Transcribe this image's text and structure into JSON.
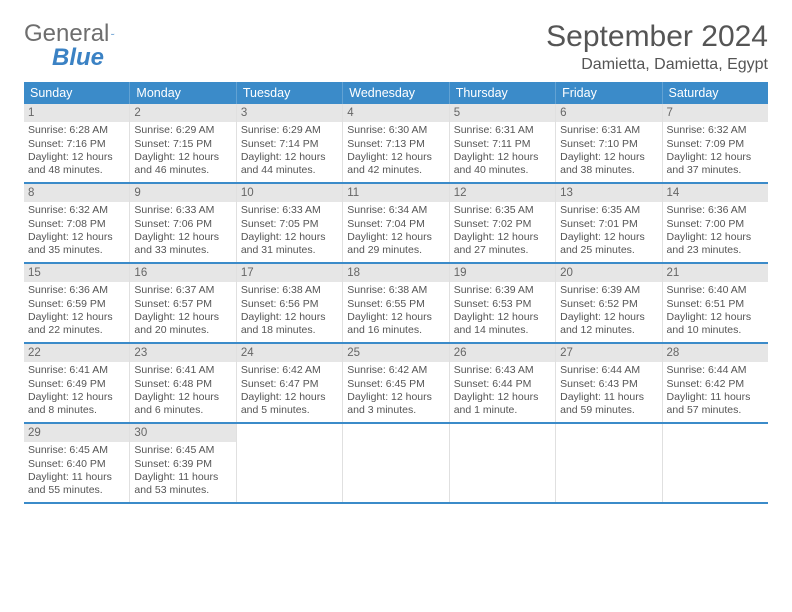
{
  "brand": {
    "part1": "General",
    "part2": "Blue"
  },
  "title": "September 2024",
  "location": "Damietta, Damietta, Egypt",
  "colors": {
    "header_bg": "#3b8bc9",
    "header_text": "#ffffff",
    "daynum_bg": "#e6e6e6",
    "row_border": "#3b8bc9",
    "cell_border": "#e0e0e0",
    "body_text": "#555555",
    "brand_gray": "#707070",
    "brand_blue": "#3b82c4",
    "page_bg": "#ffffff"
  },
  "fonts": {
    "title_pt": 30,
    "location_pt": 16,
    "weekday_pt": 12.5,
    "body_pt": 10.5,
    "daynum_pt": 11.5
  },
  "weekdays": [
    "Sunday",
    "Monday",
    "Tuesday",
    "Wednesday",
    "Thursday",
    "Friday",
    "Saturday"
  ],
  "weeks": [
    [
      {
        "n": "1",
        "l1": "Sunrise: 6:28 AM",
        "l2": "Sunset: 7:16 PM",
        "l3": "Daylight: 12 hours",
        "l4": "and 48 minutes."
      },
      {
        "n": "2",
        "l1": "Sunrise: 6:29 AM",
        "l2": "Sunset: 7:15 PM",
        "l3": "Daylight: 12 hours",
        "l4": "and 46 minutes."
      },
      {
        "n": "3",
        "l1": "Sunrise: 6:29 AM",
        "l2": "Sunset: 7:14 PM",
        "l3": "Daylight: 12 hours",
        "l4": "and 44 minutes."
      },
      {
        "n": "4",
        "l1": "Sunrise: 6:30 AM",
        "l2": "Sunset: 7:13 PM",
        "l3": "Daylight: 12 hours",
        "l4": "and 42 minutes."
      },
      {
        "n": "5",
        "l1": "Sunrise: 6:31 AM",
        "l2": "Sunset: 7:11 PM",
        "l3": "Daylight: 12 hours",
        "l4": "and 40 minutes."
      },
      {
        "n": "6",
        "l1": "Sunrise: 6:31 AM",
        "l2": "Sunset: 7:10 PM",
        "l3": "Daylight: 12 hours",
        "l4": "and 38 minutes."
      },
      {
        "n": "7",
        "l1": "Sunrise: 6:32 AM",
        "l2": "Sunset: 7:09 PM",
        "l3": "Daylight: 12 hours",
        "l4": "and 37 minutes."
      }
    ],
    [
      {
        "n": "8",
        "l1": "Sunrise: 6:32 AM",
        "l2": "Sunset: 7:08 PM",
        "l3": "Daylight: 12 hours",
        "l4": "and 35 minutes."
      },
      {
        "n": "9",
        "l1": "Sunrise: 6:33 AM",
        "l2": "Sunset: 7:06 PM",
        "l3": "Daylight: 12 hours",
        "l4": "and 33 minutes."
      },
      {
        "n": "10",
        "l1": "Sunrise: 6:33 AM",
        "l2": "Sunset: 7:05 PM",
        "l3": "Daylight: 12 hours",
        "l4": "and 31 minutes."
      },
      {
        "n": "11",
        "l1": "Sunrise: 6:34 AM",
        "l2": "Sunset: 7:04 PM",
        "l3": "Daylight: 12 hours",
        "l4": "and 29 minutes."
      },
      {
        "n": "12",
        "l1": "Sunrise: 6:35 AM",
        "l2": "Sunset: 7:02 PM",
        "l3": "Daylight: 12 hours",
        "l4": "and 27 minutes."
      },
      {
        "n": "13",
        "l1": "Sunrise: 6:35 AM",
        "l2": "Sunset: 7:01 PM",
        "l3": "Daylight: 12 hours",
        "l4": "and 25 minutes."
      },
      {
        "n": "14",
        "l1": "Sunrise: 6:36 AM",
        "l2": "Sunset: 7:00 PM",
        "l3": "Daylight: 12 hours",
        "l4": "and 23 minutes."
      }
    ],
    [
      {
        "n": "15",
        "l1": "Sunrise: 6:36 AM",
        "l2": "Sunset: 6:59 PM",
        "l3": "Daylight: 12 hours",
        "l4": "and 22 minutes."
      },
      {
        "n": "16",
        "l1": "Sunrise: 6:37 AM",
        "l2": "Sunset: 6:57 PM",
        "l3": "Daylight: 12 hours",
        "l4": "and 20 minutes."
      },
      {
        "n": "17",
        "l1": "Sunrise: 6:38 AM",
        "l2": "Sunset: 6:56 PM",
        "l3": "Daylight: 12 hours",
        "l4": "and 18 minutes."
      },
      {
        "n": "18",
        "l1": "Sunrise: 6:38 AM",
        "l2": "Sunset: 6:55 PM",
        "l3": "Daylight: 12 hours",
        "l4": "and 16 minutes."
      },
      {
        "n": "19",
        "l1": "Sunrise: 6:39 AM",
        "l2": "Sunset: 6:53 PM",
        "l3": "Daylight: 12 hours",
        "l4": "and 14 minutes."
      },
      {
        "n": "20",
        "l1": "Sunrise: 6:39 AM",
        "l2": "Sunset: 6:52 PM",
        "l3": "Daylight: 12 hours",
        "l4": "and 12 minutes."
      },
      {
        "n": "21",
        "l1": "Sunrise: 6:40 AM",
        "l2": "Sunset: 6:51 PM",
        "l3": "Daylight: 12 hours",
        "l4": "and 10 minutes."
      }
    ],
    [
      {
        "n": "22",
        "l1": "Sunrise: 6:41 AM",
        "l2": "Sunset: 6:49 PM",
        "l3": "Daylight: 12 hours",
        "l4": "and 8 minutes."
      },
      {
        "n": "23",
        "l1": "Sunrise: 6:41 AM",
        "l2": "Sunset: 6:48 PM",
        "l3": "Daylight: 12 hours",
        "l4": "and 6 minutes."
      },
      {
        "n": "24",
        "l1": "Sunrise: 6:42 AM",
        "l2": "Sunset: 6:47 PM",
        "l3": "Daylight: 12 hours",
        "l4": "and 5 minutes."
      },
      {
        "n": "25",
        "l1": "Sunrise: 6:42 AM",
        "l2": "Sunset: 6:45 PM",
        "l3": "Daylight: 12 hours",
        "l4": "and 3 minutes."
      },
      {
        "n": "26",
        "l1": "Sunrise: 6:43 AM",
        "l2": "Sunset: 6:44 PM",
        "l3": "Daylight: 12 hours",
        "l4": "and 1 minute."
      },
      {
        "n": "27",
        "l1": "Sunrise: 6:44 AM",
        "l2": "Sunset: 6:43 PM",
        "l3": "Daylight: 11 hours",
        "l4": "and 59 minutes."
      },
      {
        "n": "28",
        "l1": "Sunrise: 6:44 AM",
        "l2": "Sunset: 6:42 PM",
        "l3": "Daylight: 11 hours",
        "l4": "and 57 minutes."
      }
    ],
    [
      {
        "n": "29",
        "l1": "Sunrise: 6:45 AM",
        "l2": "Sunset: 6:40 PM",
        "l3": "Daylight: 11 hours",
        "l4": "and 55 minutes."
      },
      {
        "n": "30",
        "l1": "Sunrise: 6:45 AM",
        "l2": "Sunset: 6:39 PM",
        "l3": "Daylight: 11 hours",
        "l4": "and 53 minutes."
      },
      null,
      null,
      null,
      null,
      null
    ]
  ]
}
